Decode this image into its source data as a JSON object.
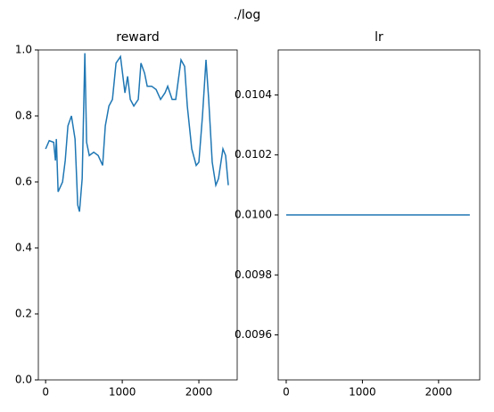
{
  "title": "./log",
  "chart_data": [
    {
      "type": "line",
      "title": "reward",
      "x": [
        0,
        47,
        105,
        128,
        140,
        163,
        221,
        256,
        291,
        337,
        384,
        419,
        442,
        477,
        512,
        535,
        570,
        628,
        686,
        744,
        779,
        826,
        872,
        919,
        977,
        1035,
        1070,
        1105,
        1151,
        1209,
        1244,
        1291,
        1326,
        1384,
        1442,
        1500,
        1558,
        1593,
        1651,
        1698,
        1767,
        1814,
        1849,
        1907,
        1965,
        2000,
        2047,
        2093,
        2128,
        2174,
        2221,
        2256,
        2314,
        2349,
        2384
      ],
      "series": [
        {
          "name": "reward",
          "color": "#1f77b4",
          "values": [
            0.7,
            0.725,
            0.72,
            0.665,
            0.73,
            0.57,
            0.6,
            0.665,
            0.77,
            0.8,
            0.73,
            0.53,
            0.51,
            0.61,
            0.99,
            0.72,
            0.68,
            0.69,
            0.68,
            0.65,
            0.77,
            0.83,
            0.85,
            0.96,
            0.98,
            0.87,
            0.92,
            0.85,
            0.83,
            0.85,
            0.96,
            0.93,
            0.89,
            0.89,
            0.88,
            0.85,
            0.87,
            0.89,
            0.85,
            0.85,
            0.97,
            0.95,
            0.83,
            0.7,
            0.65,
            0.66,
            0.8,
            0.97,
            0.85,
            0.66,
            0.59,
            0.61,
            0.7,
            0.68,
            0.59
          ]
        }
      ],
      "xlim": [
        -95,
        2500
      ],
      "xticks": [
        0,
        1000,
        2000
      ],
      "ylim": [
        0,
        1
      ],
      "yticks": [
        {
          "value": 0,
          "label": "0.0"
        },
        0.2,
        0.4,
        0.6,
        0.8,
        {
          "value": 1,
          "label": "1.0"
        }
      ]
    },
    {
      "type": "line",
      "title": "lr",
      "x": [
        0,
        2410
      ],
      "series": [
        {
          "name": "lr",
          "color": "#1f77b4",
          "values": [
            0.01,
            0.01
          ]
        }
      ],
      "xlim": [
        -105,
        2540
      ],
      "xticks": [
        0,
        1000,
        2000
      ],
      "ylim": [
        0.00945,
        0.01055
      ],
      "yticks": [
        0.0096,
        0.0098,
        {
          "value": 0.01,
          "label": "0.0100"
        },
        0.0102,
        0.0104
      ]
    }
  ]
}
